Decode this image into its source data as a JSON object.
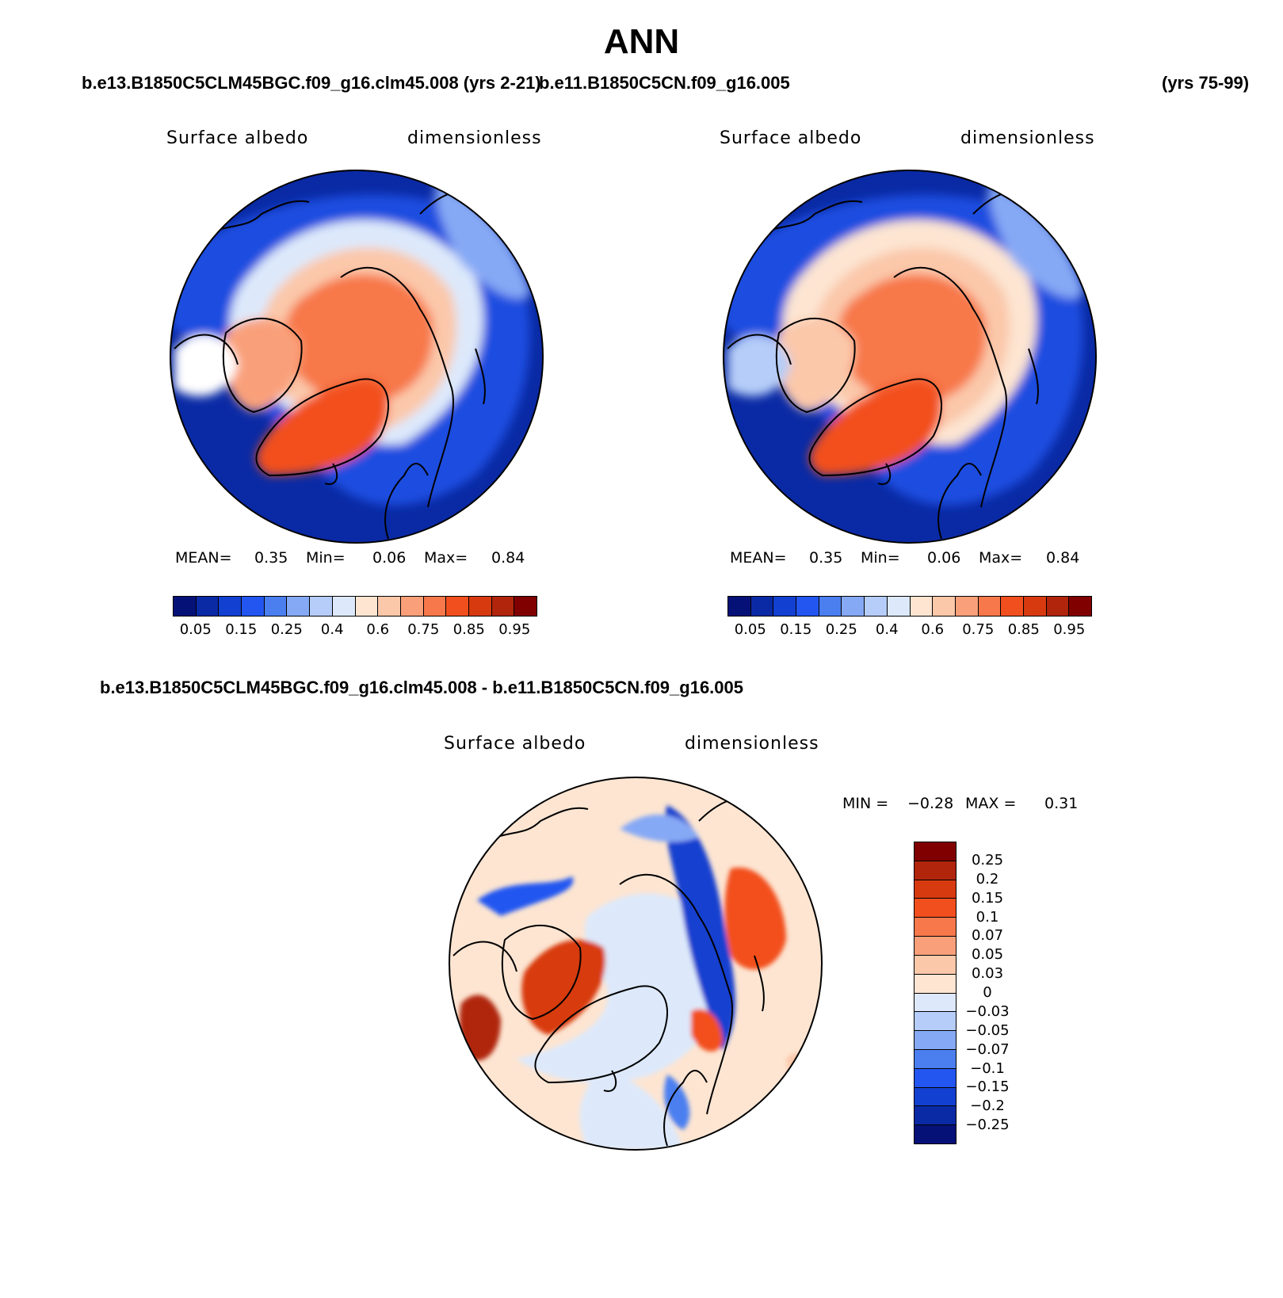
{
  "title": "ANN",
  "top_case_left": "b.e13.B1850C5CLM45BGC.f09_g16.clm45.008 (yrs 2-21)",
  "top_case_right": "b.e11.B1850C5CN.f09_g16.005",
  "top_years_right": "(yrs 75-99)",
  "diff_title": "b.e13.B1850C5CLM45BGC.f09_g16.clm45.008 - b.e11.B1850C5CN.f09_g16.005",
  "panels": [
    {
      "variable": "Surface albedo",
      "units": "dimensionless",
      "mean_label": "MEAN=",
      "mean": "0.35",
      "min_label": "Min=",
      "min": "0.06",
      "max_label": "Max=",
      "max": "0.84"
    },
    {
      "variable": "Surface albedo",
      "units": "dimensionless",
      "mean_label": "MEAN=",
      "mean": "0.35",
      "min_label": "Min=",
      "min": "0.06",
      "max_label": "Max=",
      "max": "0.84"
    },
    {
      "variable": "Surface albedo",
      "units": "dimensionless",
      "min_label": "MIN =",
      "min": "−0.28",
      "max_label": "MAX =",
      "max": "0.31"
    }
  ],
  "colorbar_abs": {
    "ticks": [
      "0.05",
      "0.15",
      "0.25",
      "0.4",
      "0.6",
      "0.75",
      "0.85",
      "0.95"
    ],
    "colors": [
      "#061178",
      "#0a2aa5",
      "#1240d0",
      "#2356f0",
      "#4b7ff0",
      "#86a9f5",
      "#b5cdf8",
      "#dde9fb",
      "#fde5d2",
      "#fbc8aa",
      "#f9a07a",
      "#f7784a",
      "#f24f1e",
      "#d83a10",
      "#b0250c",
      "#800000"
    ]
  },
  "colorbar_diff": {
    "ticks": [
      "0.25",
      "0.2",
      "0.15",
      "0.1",
      "0.07",
      "0.05",
      "0.03",
      "0",
      "−0.03",
      "−0.05",
      "−0.07",
      "−0.1",
      "−0.15",
      "−0.2",
      "−0.25"
    ],
    "colors": [
      "#800000",
      "#b0250c",
      "#d83a10",
      "#f24f1e",
      "#f7784a",
      "#f9a07a",
      "#fbc8aa",
      "#fde5d2",
      "#dde9fb",
      "#b5cdf8",
      "#86a9f5",
      "#4b7ff0",
      "#2356f0",
      "#1240d0",
      "#0a2aa5",
      "#061178"
    ]
  },
  "chart_data": [
    {
      "type": "heatmap",
      "projection": "north polar stereographic",
      "variable": "Surface albedo",
      "units": "dimensionless",
      "mean": 0.35,
      "min": 0.06,
      "max": 0.84,
      "levels": [
        0.05,
        0.1,
        0.15,
        0.2,
        0.25,
        0.3,
        0.4,
        0.5,
        0.6,
        0.65,
        0.7,
        0.75,
        0.8,
        0.85,
        0.9,
        0.95
      ]
    },
    {
      "type": "heatmap",
      "projection": "north polar stereographic",
      "variable": "Surface albedo",
      "units": "dimensionless",
      "mean": 0.35,
      "min": 0.06,
      "max": 0.84,
      "levels": [
        0.05,
        0.1,
        0.15,
        0.2,
        0.25,
        0.3,
        0.4,
        0.5,
        0.6,
        0.65,
        0.7,
        0.75,
        0.8,
        0.85,
        0.9,
        0.95
      ]
    },
    {
      "type": "heatmap",
      "projection": "north polar stereographic",
      "variable": "Surface albedo",
      "units": "dimensionless",
      "min": -0.28,
      "max": 0.31,
      "levels": [
        0.25,
        0.2,
        0.15,
        0.1,
        0.07,
        0.05,
        0.03,
        0,
        -0.03,
        -0.05,
        -0.07,
        -0.1,
        -0.15,
        -0.2,
        -0.25
      ]
    }
  ]
}
